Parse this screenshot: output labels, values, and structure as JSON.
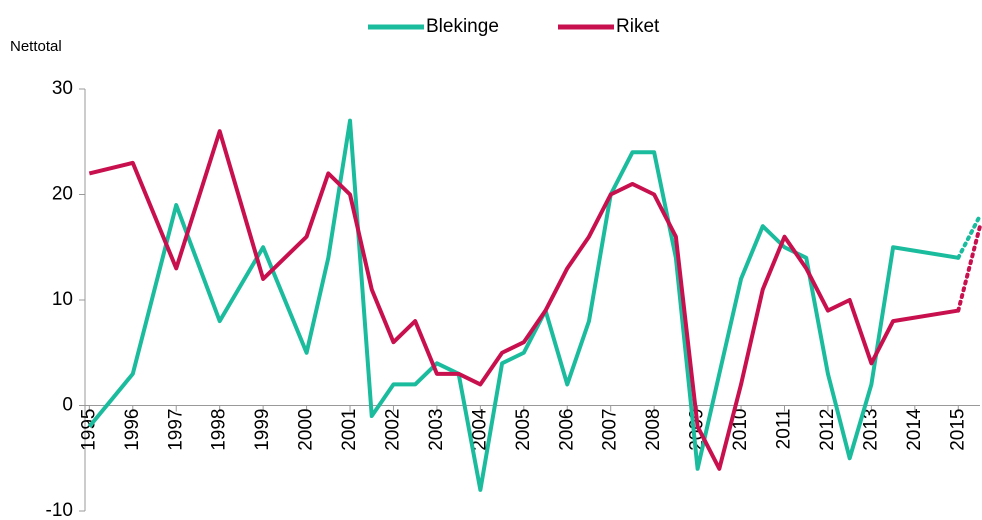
{
  "chart_data": {
    "type": "line",
    "y_label": "Nettotal",
    "xlim": [
      1994.9,
      2015.5
    ],
    "xticks": [
      1995,
      1996,
      1997,
      1998,
      1999,
      2000,
      2001,
      2002,
      2003,
      2004,
      2005,
      2006,
      2007,
      2008,
      2009,
      2010,
      2011,
      2012,
      2013,
      2014,
      2015
    ],
    "ylim": [
      -10,
      30
    ],
    "yticks": [
      -10,
      0,
      10,
      20,
      30
    ],
    "grid": false,
    "legend": "top",
    "series": [
      {
        "name": "Blekinge",
        "color": "#1bbc9e",
        "x": [
          1995,
          1996,
          1997,
          1998,
          1999,
          2000,
          2000.5,
          2001,
          2001.5,
          2002,
          2002.5,
          2003,
          2003.5,
          2004,
          2004.5,
          2005,
          2005.5,
          2006,
          2006.5,
          2007,
          2007.5,
          2008,
          2008.5,
          2009,
          2009.5,
          2010,
          2010.5,
          2011,
          2011.5,
          2012,
          2012.5,
          2013,
          2013.5,
          2015
        ],
        "values": [
          -2,
          3,
          19,
          8,
          15,
          5,
          14,
          27,
          -1,
          2,
          2,
          4,
          3,
          -8,
          4,
          5,
          9,
          2,
          8,
          20,
          24,
          24,
          14,
          -6,
          3,
          12,
          17,
          15,
          14,
          3,
          -5,
          2,
          15,
          14
        ],
        "forecast": {
          "x": [
            2015,
            2015.5
          ],
          "values": [
            14,
            18
          ]
        }
      },
      {
        "name": "Riket",
        "color": "#c8104f",
        "x": [
          1995,
          1996,
          1997,
          1998,
          1999,
          2000,
          2000.5,
          2001,
          2001.5,
          2002,
          2002.5,
          2003,
          2003.5,
          2004,
          2004.5,
          2005,
          2005.5,
          2006,
          2006.5,
          2007,
          2007.5,
          2008,
          2008.5,
          2009,
          2009.5,
          2010,
          2010.5,
          2011,
          2011.5,
          2012,
          2012.5,
          2013,
          2013.5,
          2015
        ],
        "values": [
          22,
          23,
          13,
          26,
          12,
          16,
          22,
          20,
          11,
          6,
          8,
          3,
          3,
          2,
          5,
          6,
          9,
          13,
          16,
          20,
          21,
          20,
          16,
          -2,
          -6,
          2,
          11,
          16,
          13,
          9,
          10,
          4,
          8,
          9
        ],
        "forecast": {
          "x": [
            2015,
            2015.5
          ],
          "values": [
            9,
            17
          ]
        }
      }
    ]
  }
}
